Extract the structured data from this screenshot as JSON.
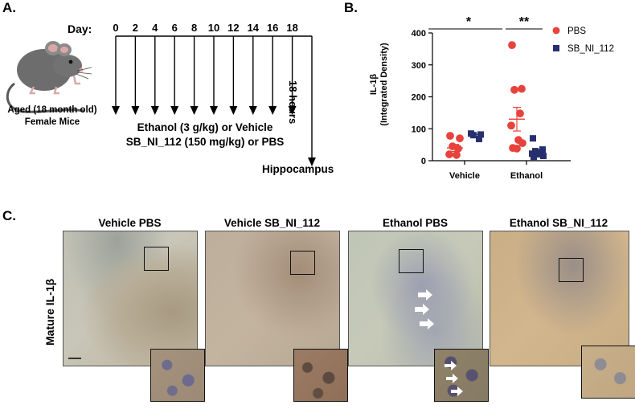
{
  "panel_a": {
    "label": "A.",
    "day_label": "Day:",
    "days": [
      "0",
      "2",
      "4",
      "6",
      "8",
      "10",
      "12",
      "14",
      "16",
      "18"
    ],
    "treatment_line1": "Ethanol (3 g/kg) or Vehicle",
    "treatment_line2": "SB_NI_112 (150 mg/kg) or PBS",
    "hours_label": "18 hours",
    "endpoint_label": "Hippocampus",
    "mouse_line1": "Aged (18 month old)",
    "mouse_line2": "Female Mice"
  },
  "panel_b": {
    "label": "B.",
    "ylabel_line1": "IL-1β",
    "ylabel_line2": "(Integrated Density)",
    "yticks": [
      "0",
      "100",
      "200",
      "300",
      "400"
    ],
    "sig_vehicle_vs_ethanol": "*",
    "sig_ethanol_groups": "**",
    "colors": {
      "PBS": "#e8423c",
      "SB_NI_112": "#27306e"
    }
  },
  "chart_data": {
    "type": "scatter",
    "categories": [
      "Vehicle",
      "Ethanol"
    ],
    "ylim": [
      0,
      400
    ],
    "ylabel": "IL-1β (Integrated Density)",
    "legend": "top-right",
    "series": [
      {
        "name": "PBS",
        "marker": "circle",
        "points": {
          "Vehicle": [
            78,
            70,
            45,
            38,
            20,
            18
          ],
          "Ethanol": [
            362,
            225,
            222,
            148,
            110,
            65,
            55,
            40,
            38
          ]
        },
        "mean": {
          "Vehicle": 40,
          "Ethanol": 130
        },
        "sem": {
          "Vehicle": 11,
          "Ethanol": 37
        }
      },
      {
        "name": "SB_NI_112",
        "marker": "square",
        "points": {
          "Vehicle": [
            85,
            82,
            80,
            68
          ],
          "Ethanol": [
            70,
            35,
            30,
            25,
            22,
            20,
            15,
            12
          ]
        },
        "mean": {
          "Vehicle": 77,
          "Ethanol": 28
        },
        "sem": {
          "Vehicle": 5,
          "Ethanol": 7
        }
      }
    ]
  },
  "panel_c": {
    "label": "C.",
    "row_label": "Mature IL-1β",
    "images": [
      {
        "title": "Vehicle PBS"
      },
      {
        "title": "Vehicle SB_NI_112"
      },
      {
        "title": "Ethanol PBS"
      },
      {
        "title": "Ethanol SB_NI_112"
      }
    ]
  }
}
